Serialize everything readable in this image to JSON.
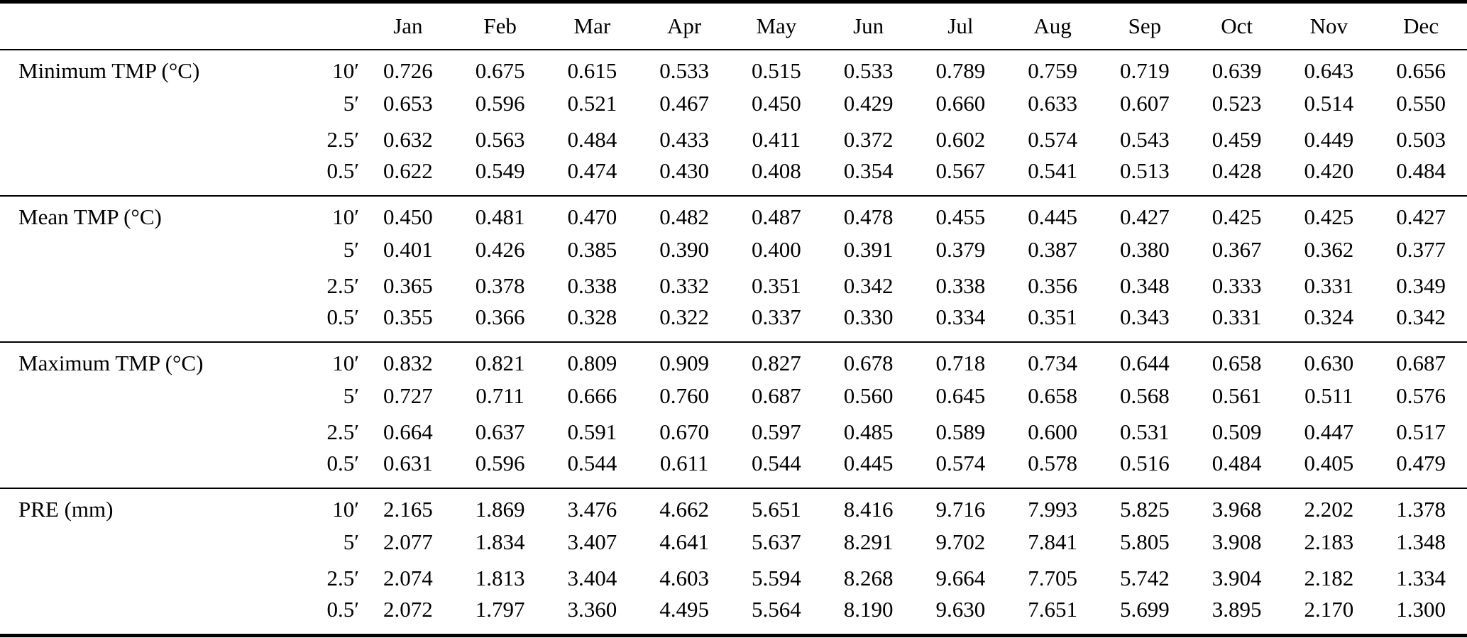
{
  "table": {
    "months": [
      "Jan",
      "Feb",
      "Mar",
      "Apr",
      "May",
      "Jun",
      "Jul",
      "Aug",
      "Sep",
      "Oct",
      "Nov",
      "Dec"
    ],
    "sections": [
      {
        "label": "Minimum TMP (°C)",
        "rows": [
          {
            "resolution": "10′",
            "values": [
              "0.726",
              "0.675",
              "0.615",
              "0.533",
              "0.515",
              "0.533",
              "0.789",
              "0.759",
              "0.719",
              "0.639",
              "0.643",
              "0.656"
            ]
          },
          {
            "resolution": "5′",
            "values": [
              "0.653",
              "0.596",
              "0.521",
              "0.467",
              "0.450",
              "0.429",
              "0.660",
              "0.633",
              "0.607",
              "0.523",
              "0.514",
              "0.550"
            ]
          },
          {
            "resolution": "2.5′",
            "values": [
              "0.632",
              "0.563",
              "0.484",
              "0.433",
              "0.411",
              "0.372",
              "0.602",
              "0.574",
              "0.543",
              "0.459",
              "0.449",
              "0.503"
            ]
          },
          {
            "resolution": "0.5′",
            "values": [
              "0.622",
              "0.549",
              "0.474",
              "0.430",
              "0.408",
              "0.354",
              "0.567",
              "0.541",
              "0.513",
              "0.428",
              "0.420",
              "0.484"
            ]
          }
        ]
      },
      {
        "label": "Mean TMP (°C)",
        "rows": [
          {
            "resolution": "10′",
            "values": [
              "0.450",
              "0.481",
              "0.470",
              "0.482",
              "0.487",
              "0.478",
              "0.455",
              "0.445",
              "0.427",
              "0.425",
              "0.425",
              "0.427"
            ]
          },
          {
            "resolution": "5′",
            "values": [
              "0.401",
              "0.426",
              "0.385",
              "0.390",
              "0.400",
              "0.391",
              "0.379",
              "0.387",
              "0.380",
              "0.367",
              "0.362",
              "0.377"
            ]
          },
          {
            "resolution": "2.5′",
            "values": [
              "0.365",
              "0.378",
              "0.338",
              "0.332",
              "0.351",
              "0.342",
              "0.338",
              "0.356",
              "0.348",
              "0.333",
              "0.331",
              "0.349"
            ]
          },
          {
            "resolution": "0.5′",
            "values": [
              "0.355",
              "0.366",
              "0.328",
              "0.322",
              "0.337",
              "0.330",
              "0.334",
              "0.351",
              "0.343",
              "0.331",
              "0.324",
              "0.342"
            ]
          }
        ]
      },
      {
        "label": "Maximum TMP (°C)",
        "rows": [
          {
            "resolution": "10′",
            "values": [
              "0.832",
              "0.821",
              "0.809",
              "0.909",
              "0.827",
              "0.678",
              "0.718",
              "0.734",
              "0.644",
              "0.658",
              "0.630",
              "0.687"
            ]
          },
          {
            "resolution": "5′",
            "values": [
              "0.727",
              "0.711",
              "0.666",
              "0.760",
              "0.687",
              "0.560",
              "0.645",
              "0.658",
              "0.568",
              "0.561",
              "0.511",
              "0.576"
            ]
          },
          {
            "resolution": "2.5′",
            "values": [
              "0.664",
              "0.637",
              "0.591",
              "0.670",
              "0.597",
              "0.485",
              "0.589",
              "0.600",
              "0.531",
              "0.509",
              "0.447",
              "0.517"
            ]
          },
          {
            "resolution": "0.5′",
            "values": [
              "0.631",
              "0.596",
              "0.544",
              "0.611",
              "0.544",
              "0.445",
              "0.574",
              "0.578",
              "0.516",
              "0.484",
              "0.405",
              "0.479"
            ]
          }
        ]
      },
      {
        "label": "PRE (mm)",
        "rows": [
          {
            "resolution": "10′",
            "values": [
              "2.165",
              "1.869",
              "3.476",
              "4.662",
              "5.651",
              "8.416",
              "9.716",
              "7.993",
              "5.825",
              "3.968",
              "2.202",
              "1.378"
            ]
          },
          {
            "resolution": "5′",
            "values": [
              "2.077",
              "1.834",
              "3.407",
              "4.641",
              "5.637",
              "8.291",
              "9.702",
              "7.841",
              "5.805",
              "3.908",
              "2.183",
              "1.348"
            ]
          },
          {
            "resolution": "2.5′",
            "values": [
              "2.074",
              "1.813",
              "3.404",
              "4.603",
              "5.594",
              "8.268",
              "9.664",
              "7.705",
              "5.742",
              "3.904",
              "2.182",
              "1.334"
            ]
          },
          {
            "resolution": "0.5′",
            "values": [
              "2.072",
              "1.797",
              "3.360",
              "4.495",
              "5.564",
              "8.190",
              "9.630",
              "7.651",
              "5.699",
              "3.895",
              "2.170",
              "1.300"
            ]
          }
        ]
      }
    ]
  }
}
